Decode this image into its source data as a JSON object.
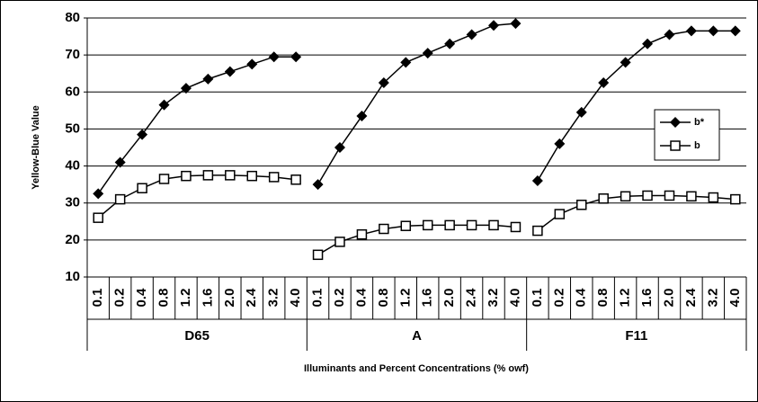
{
  "chart_data": {
    "type": "line",
    "y_label": "Yellow-Blue Value",
    "x_label": "Illuminants and Percent Concentrations (% owf)",
    "groups": [
      "D65",
      "A",
      "F11"
    ],
    "categories": [
      "0.1",
      "0.2",
      "0.4",
      "0.8",
      "1.2",
      "1.6",
      "2.0",
      "2.4",
      "3.2",
      "4.0",
      "0.1",
      "0.2",
      "0.4",
      "0.8",
      "1.2",
      "1.6",
      "2.0",
      "2.4",
      "3.2",
      "4.0",
      "0.1",
      "0.2",
      "0.4",
      "0.8",
      "1.2",
      "1.6",
      "2.0",
      "2.4",
      "3.2",
      "4.0"
    ],
    "series": [
      {
        "name": "b*",
        "color": "#000000",
        "marker": "diamond",
        "values": [
          32.5,
          41,
          48.5,
          56.5,
          61,
          63.5,
          65.5,
          67.5,
          69.5,
          69.5,
          35,
          45,
          53.5,
          62.5,
          68,
          70.5,
          73,
          75.5,
          78,
          78.5,
          36,
          46,
          54.5,
          62.5,
          68,
          73,
          75.5,
          76.5,
          76.5,
          76.5
        ]
      },
      {
        "name": "b",
        "color": "#000000",
        "marker": "square",
        "values": [
          26,
          31,
          34,
          36.5,
          37.3,
          37.5,
          37.5,
          37.3,
          37,
          36.3,
          16,
          19.5,
          21.5,
          23,
          23.8,
          24,
          24,
          24,
          24,
          23.5,
          22.5,
          27,
          29.5,
          31.2,
          31.8,
          32,
          32,
          31.8,
          31.5,
          31
        ]
      }
    ],
    "ylim": [
      10,
      80
    ],
    "yticks": [
      10,
      20,
      30,
      40,
      50,
      60,
      70,
      80
    ],
    "grid": true,
    "legend": "right"
  }
}
